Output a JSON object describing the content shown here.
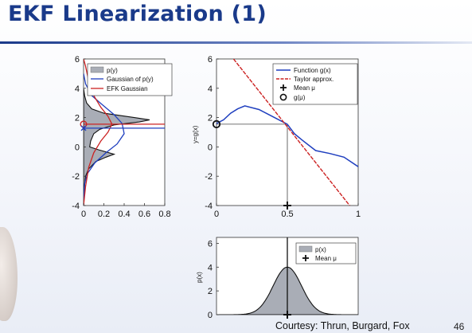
{
  "slide": {
    "title": "EKF Linearization (1)",
    "footer": "Courtesy: Thrun, Burgard, Fox",
    "page_number": "46"
  },
  "colors": {
    "title": "#1a3a8a",
    "function": "#1f3fbf",
    "taylor": "#cc2222",
    "gray_fill": "#a9adb6"
  },
  "chart_data": [
    {
      "id": "left",
      "type": "area",
      "orientation": "horizontal",
      "xlim": [
        0,
        0.8
      ],
      "ylim": [
        -4,
        6
      ],
      "xticks": [
        0,
        0.2,
        0.4,
        0.6,
        0.8
      ],
      "xtick_labels": [
        "0",
        "0.2",
        "0.4",
        "0.6",
        "0.8"
      ],
      "yticks": [
        -4,
        -2,
        0,
        2,
        4,
        6
      ],
      "ytick_labels": [
        "-4",
        "-2",
        "0",
        "2",
        "4",
        "6"
      ],
      "legend": [
        "p(y)",
        "Gaussian of p(y)",
        "EFK Gaussian"
      ],
      "legend_position": "top-right",
      "mean_y": 1.55,
      "series": [
        {
          "name": "p(y)",
          "points": [
            [
              0,
              -4
            ],
            [
              0.005,
              -3
            ],
            [
              0.02,
              -2
            ],
            [
              0.05,
              -1.5
            ],
            [
              0.12,
              -1
            ],
            [
              0.22,
              -0.7
            ],
            [
              0.3,
              -0.5
            ],
            [
              0.15,
              -0.2
            ],
            [
              0.06,
              0
            ],
            [
              0.07,
              0.4
            ],
            [
              0.1,
              0.9
            ],
            [
              0.16,
              1.2
            ],
            [
              0.3,
              1.5
            ],
            [
              0.55,
              1.7
            ],
            [
              0.65,
              1.85
            ],
            [
              0.5,
              2
            ],
            [
              0.2,
              2.3
            ],
            [
              0.08,
              2.6
            ],
            [
              0.03,
              3
            ],
            [
              0.01,
              3.5
            ],
            [
              0,
              4
            ]
          ]
        },
        {
          "name": "Gaussian of p(y)",
          "points": [
            [
              0,
              -4
            ],
            [
              0.01,
              -2.5
            ],
            [
              0.04,
              -1.8
            ],
            [
              0.11,
              -1.1
            ],
            [
              0.22,
              -0.4
            ],
            [
              0.33,
              0.2
            ],
            [
              0.4,
              0.9
            ],
            [
              0.38,
              1.6
            ],
            [
              0.3,
              2.2
            ],
            [
              0.18,
              2.9
            ],
            [
              0.08,
              3.5
            ],
            [
              0.02,
              4.3
            ],
            [
              0,
              5
            ]
          ]
        },
        {
          "name": "EFK Gaussian",
          "points": [
            [
              0,
              -4
            ],
            [
              0.02,
              -2.7
            ],
            [
              0.05,
              -1.4
            ],
            [
              0.1,
              -0.4
            ],
            [
              0.17,
              0.4
            ],
            [
              0.24,
              1
            ],
            [
              0.28,
              1.55
            ],
            [
              0.24,
              2.1
            ],
            [
              0.17,
              2.7
            ],
            [
              0.1,
              3.5
            ],
            [
              0.05,
              4.5
            ],
            [
              0.02,
              5.5
            ],
            [
              0,
              6
            ]
          ]
        }
      ]
    },
    {
      "id": "right",
      "type": "line",
      "xlim": [
        0,
        1
      ],
      "ylim": [
        -4,
        6
      ],
      "xticks": [
        0,
        0.5,
        1
      ],
      "xtick_labels": [
        "0",
        "0.5",
        "1"
      ],
      "yticks": [
        -4,
        -2,
        0,
        2,
        4,
        6
      ],
      "ytick_labels": [
        "-4",
        "-2",
        "0",
        "2",
        "4",
        "6"
      ],
      "ylabel": "y=g(x)",
      "legend": [
        "Function g(x)",
        "Taylor approx.",
        "Mean μ",
        "g(μ)"
      ],
      "legend_position": "top-right",
      "mean": [
        0.5,
        1.55
      ],
      "series": [
        {
          "name": "Function g(x)",
          "points": [
            [
              0,
              1.6
            ],
            [
              0.05,
              1.85
            ],
            [
              0.1,
              2.3
            ],
            [
              0.15,
              2.6
            ],
            [
              0.2,
              2.8
            ],
            [
              0.3,
              2.55
            ],
            [
              0.4,
              2.05
            ],
            [
              0.5,
              1.55
            ],
            [
              0.55,
              0.9
            ],
            [
              0.6,
              0.5
            ],
            [
              0.7,
              -0.25
            ],
            [
              0.8,
              -0.45
            ],
            [
              0.9,
              -0.7
            ],
            [
              1,
              -1.35
            ]
          ]
        },
        {
          "name": "Taylor approx.",
          "points": [
            [
              0.12,
              6
            ],
            [
              0.94,
              -4
            ]
          ]
        }
      ]
    },
    {
      "id": "bottom",
      "type": "area",
      "xlim": [
        0,
        1
      ],
      "ylim": [
        0,
        6.5
      ],
      "yticks": [
        0,
        2,
        4,
        6
      ],
      "ytick_labels": [
        "0",
        "2",
        "4",
        "6"
      ],
      "ylabel": "p(x)",
      "legend": [
        "p(x)",
        "Mean μ"
      ],
      "legend_position": "top-right",
      "mean": 0.5,
      "series": [
        {
          "name": "p(x)",
          "gaussian": {
            "mu": 0.5,
            "sigma": 0.1,
            "peak": 4
          }
        }
      ]
    }
  ]
}
